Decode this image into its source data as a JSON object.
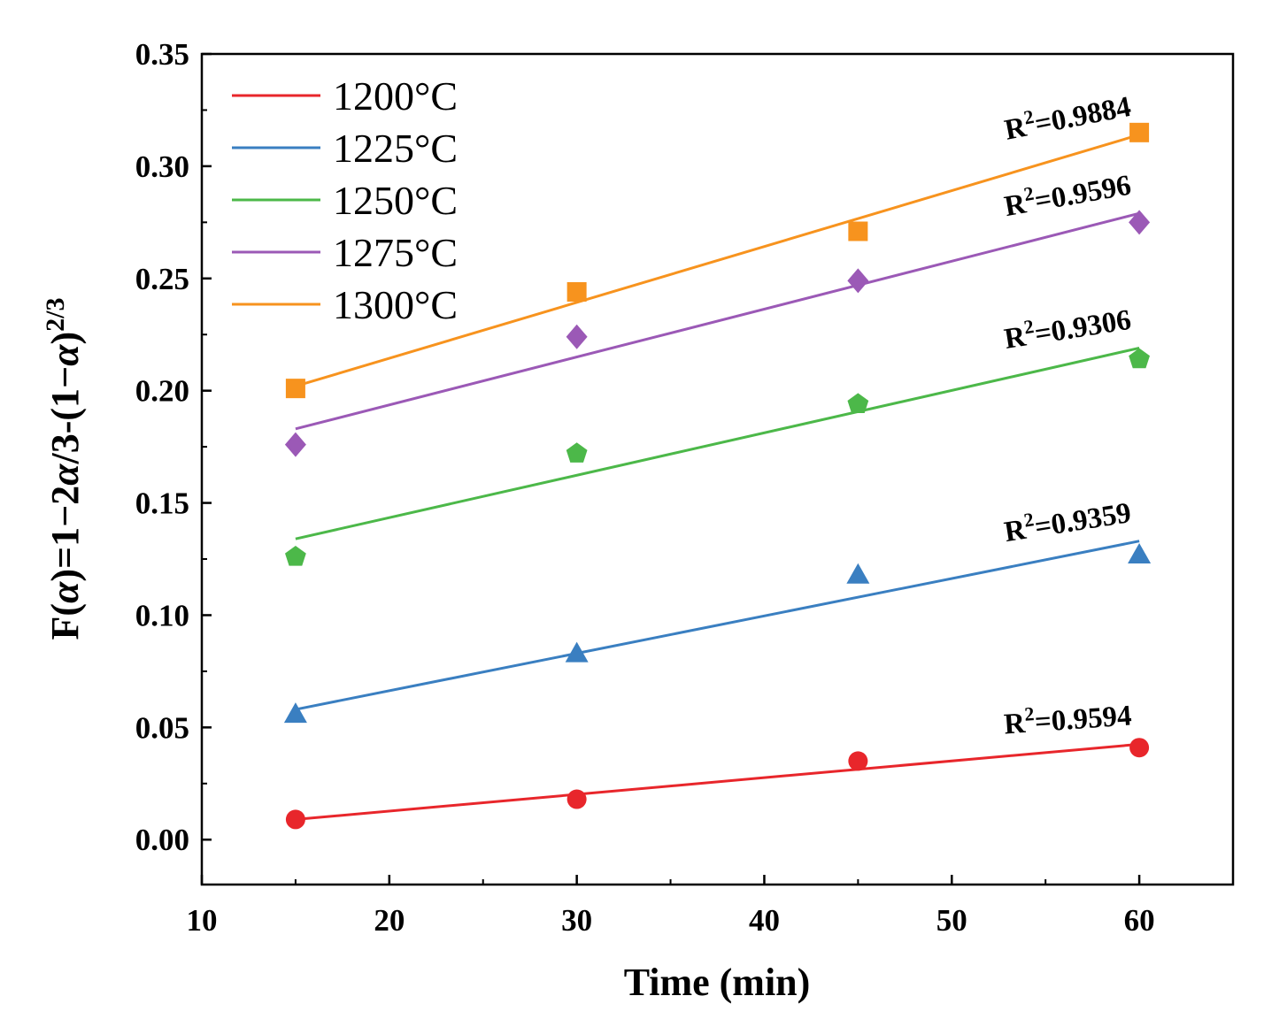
{
  "chart_data": {
    "type": "scatter",
    "title": "",
    "xlabel": "Time (min)",
    "ylabel_parts": [
      "F(",
      "α",
      ")=1−2",
      "α",
      "/3-(1−",
      "α",
      ")",
      "2/3"
    ],
    "xlim": [
      10,
      65
    ],
    "ylim": [
      -0.02,
      0.35
    ],
    "xticks": [
      10,
      20,
      30,
      40,
      50,
      60
    ],
    "yticks": [
      0.0,
      0.05,
      0.1,
      0.15,
      0.2,
      0.25,
      0.3,
      0.35
    ],
    "xtick_labels": [
      "10",
      "20",
      "30",
      "40",
      "50",
      "60"
    ],
    "ytick_labels": [
      "0.00",
      "0.05",
      "0.10",
      "0.15",
      "0.20",
      "0.25",
      "0.30",
      "0.35"
    ],
    "x": [
      15,
      30,
      45,
      60
    ],
    "legend_placement": "top-left",
    "series": [
      {
        "name": "1200°C",
        "color": "#e8262b",
        "marker": "circle",
        "values": [
          0.009,
          0.018,
          0.035,
          0.041
        ],
        "fit": [
          0.009,
          0.0425
        ],
        "r2_label": "R",
        "r2_sup": "2",
        "r2_value": "=0.9594",
        "r2_angle": -4
      },
      {
        "name": "1225°C",
        "color": "#3a7fc1",
        "marker": "triangle",
        "values": [
          0.056,
          0.083,
          0.118,
          0.127
        ],
        "fit": [
          0.058,
          0.133
        ],
        "r2_label": "R",
        "r2_sup": "2",
        "r2_value": "=0.9359",
        "r2_angle": -9
      },
      {
        "name": "1250°C",
        "color": "#4cb849",
        "marker": "pentagon",
        "values": [
          0.126,
          0.172,
          0.194,
          0.214
        ],
        "fit": [
          0.134,
          0.219
        ],
        "r2_label": "R",
        "r2_sup": "2",
        "r2_value": "=0.9306",
        "r2_angle": -9
      },
      {
        "name": "1275°C",
        "color": "#9b59b6",
        "marker": "diamond",
        "values": [
          0.176,
          0.224,
          0.249,
          0.275
        ],
        "fit": [
          0.183,
          0.279
        ],
        "r2_label": "R",
        "r2_sup": "2",
        "r2_value": "=0.9596",
        "r2_angle": -10
      },
      {
        "name": "1300°C",
        "color": "#f7931e",
        "marker": "square",
        "values": [
          0.201,
          0.244,
          0.271,
          0.315
        ],
        "fit": [
          0.202,
          0.314
        ],
        "r2_label": "R",
        "r2_sup": "2",
        "r2_value": "=0.9884",
        "r2_angle": -11
      }
    ]
  }
}
